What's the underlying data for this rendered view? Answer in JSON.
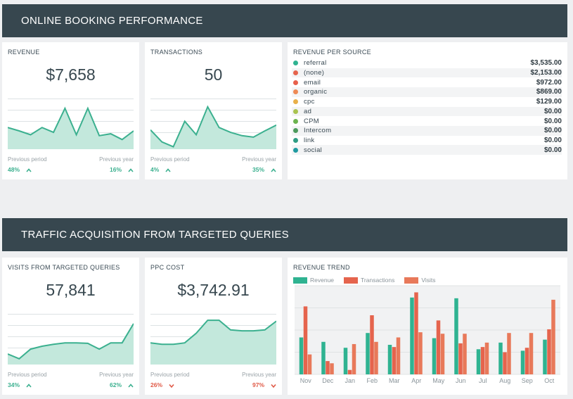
{
  "section1": {
    "title": "ONLINE BOOKING PERFORMANCE"
  },
  "section2": {
    "title": "TRAFFIC ACQUISITION FROM TARGETED QUERIES"
  },
  "colors": {
    "teal": "#3bb08f",
    "teal_fill": "#c3e8dc",
    "red": "#e05a47",
    "orange": "#e8795a",
    "banner": "#37474f"
  },
  "revenue": {
    "title": "REVENUE",
    "value": "$7,658",
    "spark": [
      0.45,
      0.38,
      0.3,
      0.45,
      0.35,
      0.85,
      0.3,
      0.85,
      0.28,
      0.32,
      0.2,
      0.38
    ],
    "prev_label": "Previous period",
    "prev_value": "48%",
    "prev_dir": "up",
    "year_label": "Previous year",
    "year_value": "16%",
    "year_dir": "up"
  },
  "transactions": {
    "title": "TRANSACTIONS",
    "value": "50",
    "spark": [
      0.4,
      0.15,
      0.05,
      0.58,
      0.3,
      0.88,
      0.45,
      0.35,
      0.28,
      0.25,
      0.38,
      0.5
    ],
    "prev_label": "Previous period",
    "prev_value": "4%",
    "prev_dir": "up",
    "year_label": "Previous year",
    "year_value": "35%",
    "year_dir": "up"
  },
  "revenue_per_source": {
    "title": "REVENUE PER SOURCE",
    "rows": [
      {
        "name": "referral",
        "value": "$3,535.00",
        "color": "#2fb391"
      },
      {
        "name": "(none)",
        "value": "$2,153.00",
        "color": "#e5644d"
      },
      {
        "name": "email",
        "value": "$972.00",
        "color": "#e8604c"
      },
      {
        "name": "organic",
        "value": "$869.00",
        "color": "#ee8a55"
      },
      {
        "name": "cpc",
        "value": "$129.00",
        "color": "#e9b04a"
      },
      {
        "name": "ad",
        "value": "$0.00",
        "color": "#a9c34f"
      },
      {
        "name": "CPM",
        "value": "$0.00",
        "color": "#6cb34f"
      },
      {
        "name": "Intercom",
        "value": "$0.00",
        "color": "#4c9a5c"
      },
      {
        "name": "link",
        "value": "$0.00",
        "color": "#2f9c84"
      },
      {
        "name": "social",
        "value": "$0.00",
        "color": "#1f9aa0"
      }
    ]
  },
  "visits": {
    "title": "VISITS FROM TARGETED QUERIES",
    "value": "57,841",
    "spark": [
      0.22,
      0.12,
      0.32,
      0.38,
      0.42,
      0.45,
      0.45,
      0.44,
      0.32,
      0.45,
      0.45,
      0.85
    ],
    "prev_label": "Previous period",
    "prev_value": "34%",
    "prev_dir": "up",
    "year_label": "Previous year",
    "year_value": "62%",
    "year_dir": "up"
  },
  "ppc": {
    "title": "PPC COST",
    "value": "$3,742.91",
    "spark": [
      0.45,
      0.42,
      0.42,
      0.45,
      0.65,
      0.92,
      0.92,
      0.72,
      0.7,
      0.7,
      0.72,
      0.9
    ],
    "prev_label": "Previous period",
    "prev_value": "26%",
    "prev_dir": "down",
    "year_label": "Previous year",
    "year_value": "97%",
    "year_dir": "down"
  },
  "revenue_trend": {
    "title": "REVENUE TREND",
    "chart_data": {
      "type": "bar",
      "categories": [
        "Nov",
        "Dec",
        "Jan",
        "Feb",
        "Mar",
        "Apr",
        "May",
        "Jun",
        "Jul",
        "Aug",
        "Sep",
        "Oct"
      ],
      "series": [
        {
          "name": "Revenue",
          "color": "#2fb391",
          "values": [
            50,
            44,
            36,
            56,
            40,
            104,
            49,
            103,
            34,
            43,
            32,
            47
          ]
        },
        {
          "name": "Transactions",
          "color": "#e5644d",
          "values": [
            92,
            18,
            6,
            80,
            37,
            111,
            73,
            42,
            37,
            30,
            36,
            61
          ]
        },
        {
          "name": "Visits",
          "color": "#e8795a",
          "values": [
            27,
            15,
            41,
            44,
            50,
            57,
            55,
            55,
            43,
            56,
            56,
            101
          ]
        }
      ],
      "ylim": [
        0,
        120
      ],
      "grid": true
    }
  }
}
